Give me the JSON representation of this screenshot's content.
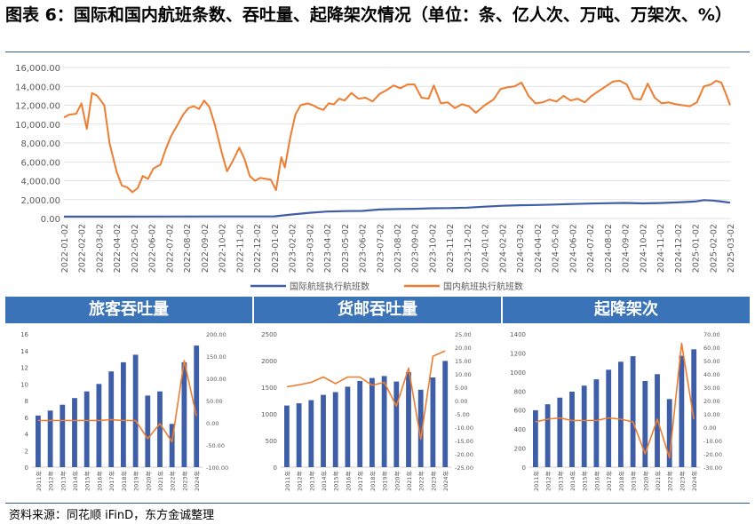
{
  "figure_title": "图表 6：国际和国内航班条数、吞吐量、起降架次情况（单位：条、亿人次、万吨、万架次、%）",
  "source_note": "资料来源：同花顺 iFinD，东方金诚整理",
  "colors": {
    "blue": "#3e5ea8",
    "orange": "#ed7d31",
    "band": "#3a73b7",
    "grid": "#d9d9d9",
    "axis_text": "#595959"
  },
  "chart_data": [
    {
      "type": "line",
      "title": "",
      "ylim": [
        0,
        16000
      ],
      "y_ticks": [
        "0.00",
        "2,000.00",
        "4,000.00",
        "6,000.00",
        "8,000.00",
        "10,000.00",
        "12,000.00",
        "14,000.00",
        "16,000.00"
      ],
      "x_ticks": [
        "2022-01-02",
        "2022-02-02",
        "2022-03-02",
        "2022-04-02",
        "2022-05-02",
        "2022-06-02",
        "2022-07-02",
        "2022-08-02",
        "2022-09-02",
        "2022-10-02",
        "2022-11-02",
        "2022-12-02",
        "2023-01-02",
        "2023-02-02",
        "2023-03-02",
        "2023-04-02",
        "2023-05-02",
        "2023-06-02",
        "2023-07-02",
        "2023-08-02",
        "2023-09-02",
        "2023-10-02",
        "2023-11-02",
        "2023-12-02",
        "2024-01-02",
        "2024-02-02",
        "2024-03-02",
        "2024-04-02",
        "2024-05-02",
        "2024-06-02",
        "2024-07-02",
        "2024-08-02",
        "2024-09-02",
        "2024-10-02",
        "2024-11-02",
        "2024-12-02",
        "2025-01-02",
        "2025-02-02",
        "2025-03-02"
      ],
      "legend_position": "bottom",
      "series": [
        {
          "name": "国际航班执行航班数",
          "color": "#3e5ea8",
          "points": [
            [
              0,
              200
            ],
            [
              6,
              210
            ],
            [
              12,
              230
            ],
            [
              13,
              420
            ],
            [
              14,
              600
            ],
            [
              15,
              730
            ],
            [
              16,
              780
            ],
            [
              17,
              800
            ],
            [
              18,
              950
            ],
            [
              19,
              1000
            ],
            [
              20,
              1030
            ],
            [
              21,
              1080
            ],
            [
              22,
              1100
            ],
            [
              23,
              1150
            ],
            [
              24,
              1250
            ],
            [
              25,
              1350
            ],
            [
              26,
              1400
            ],
            [
              27,
              1430
            ],
            [
              28,
              1480
            ],
            [
              29,
              1530
            ],
            [
              30,
              1580
            ],
            [
              31,
              1620
            ],
            [
              32,
              1650
            ],
            [
              33,
              1600
            ],
            [
              34,
              1640
            ],
            [
              35,
              1700
            ],
            [
              36,
              1800
            ],
            [
              36.5,
              1950
            ],
            [
              37,
              1900
            ],
            [
              37.5,
              1800
            ],
            [
              38,
              1680
            ]
          ]
        },
        {
          "name": "国内航班执行航班数",
          "color": "#ed7d31",
          "points": [
            [
              0,
              10700
            ],
            [
              0.3,
              11000
            ],
            [
              0.7,
              11100
            ],
            [
              1,
              12200
            ],
            [
              1.3,
              9500
            ],
            [
              1.6,
              13300
            ],
            [
              1.9,
              13000
            ],
            [
              2.3,
              12000
            ],
            [
              2.6,
              8000
            ],
            [
              3,
              5000
            ],
            [
              3.3,
              3500
            ],
            [
              3.6,
              3300
            ],
            [
              3.9,
              2800
            ],
            [
              4.2,
              3200
            ],
            [
              4.5,
              4500
            ],
            [
              4.8,
              4200
            ],
            [
              5.1,
              5300
            ],
            [
              5.5,
              5700
            ],
            [
              5.8,
              7300
            ],
            [
              6.1,
              8700
            ],
            [
              6.5,
              10000
            ],
            [
              6.8,
              11000
            ],
            [
              7.1,
              11700
            ],
            [
              7.4,
              11900
            ],
            [
              7.7,
              11600
            ],
            [
              8,
              12500
            ],
            [
              8.3,
              11800
            ],
            [
              8.6,
              10000
            ],
            [
              9,
              7000
            ],
            [
              9.3,
              5000
            ],
            [
              9.6,
              6000
            ],
            [
              10,
              7500
            ],
            [
              10.3,
              6300
            ],
            [
              10.6,
              4500
            ],
            [
              10.9,
              4000
            ],
            [
              11.2,
              4300
            ],
            [
              11.5,
              4200
            ],
            [
              11.8,
              4100
            ],
            [
              12.1,
              3000
            ],
            [
              12.4,
              6500
            ],
            [
              12.6,
              5400
            ],
            [
              12.9,
              8500
            ],
            [
              13.2,
              11000
            ],
            [
              13.5,
              12000
            ],
            [
              13.9,
              12200
            ],
            [
              14.2,
              12000
            ],
            [
              14.5,
              11700
            ],
            [
              14.8,
              11500
            ],
            [
              15.1,
              12200
            ],
            [
              15.4,
              12100
            ],
            [
              15.7,
              12700
            ],
            [
              16,
              12500
            ],
            [
              16.4,
              13300
            ],
            [
              16.8,
              12700
            ],
            [
              17.2,
              12800
            ],
            [
              17.6,
              12400
            ],
            [
              18,
              13200
            ],
            [
              18.4,
              13600
            ],
            [
              18.8,
              14100
            ],
            [
              19.2,
              13800
            ],
            [
              19.6,
              14200
            ],
            [
              20,
              14200
            ],
            [
              20.4,
              12800
            ],
            [
              20.8,
              12700
            ],
            [
              21.1,
              14100
            ],
            [
              21.5,
              12200
            ],
            [
              21.9,
              12300
            ],
            [
              22.3,
              11700
            ],
            [
              22.7,
              12100
            ],
            [
              23.1,
              11900
            ],
            [
              23.5,
              11200
            ],
            [
              24,
              12000
            ],
            [
              24.5,
              12600
            ],
            [
              24.9,
              13700
            ],
            [
              25.3,
              13900
            ],
            [
              25.7,
              14000
            ],
            [
              26.1,
              14400
            ],
            [
              26.5,
              13000
            ],
            [
              26.9,
              12200
            ],
            [
              27.3,
              12300
            ],
            [
              27.7,
              12600
            ],
            [
              28.1,
              12400
            ],
            [
              28.5,
              13000
            ],
            [
              28.9,
              12500
            ],
            [
              29.3,
              12700
            ],
            [
              29.7,
              12300
            ],
            [
              30.1,
              13000
            ],
            [
              30.5,
              13500
            ],
            [
              30.9,
              14000
            ],
            [
              31.3,
              14500
            ],
            [
              31.7,
              14600
            ],
            [
              32.1,
              14200
            ],
            [
              32.5,
              12700
            ],
            [
              32.9,
              12600
            ],
            [
              33.3,
              14300
            ],
            [
              33.7,
              12800
            ],
            [
              34.1,
              12200
            ],
            [
              34.5,
              12300
            ],
            [
              34.9,
              12100
            ],
            [
              35.3,
              12000
            ],
            [
              35.7,
              11900
            ],
            [
              36.1,
              12300
            ],
            [
              36.5,
              14000
            ],
            [
              36.9,
              14200
            ],
            [
              37.2,
              14600
            ],
            [
              37.5,
              14400
            ],
            [
              37.8,
              13000
            ],
            [
              38,
              12000
            ]
          ]
        }
      ]
    },
    {
      "type": "bar",
      "title": "旅客吞吐量",
      "categories": [
        "2011年",
        "2012年",
        "2013年",
        "2014年",
        "2015年",
        "2016年",
        "2017年",
        "2018年",
        "2019年",
        "2020年",
        "2021年",
        "2022年",
        "2023年",
        "2024年"
      ],
      "ylim": [
        0,
        16
      ],
      "y_ticks": [
        "0",
        "2",
        "4",
        "6",
        "8",
        "10",
        "12",
        "14",
        "16"
      ],
      "y2lim": [
        -100,
        200
      ],
      "y2_ticks": [
        "-100.00",
        "-50.00",
        "0.00",
        "50.00",
        "100.00",
        "150.00",
        "200.00"
      ],
      "series": [
        {
          "name": "",
          "kind": "bar",
          "axis": "left",
          "color": "#3e5ea8",
          "values": [
            6.2,
            6.8,
            7.5,
            8.3,
            9.1,
            10.0,
            11.5,
            12.6,
            13.5,
            8.6,
            9.1,
            5.2,
            12.6,
            14.6
          ]
        },
        {
          "name": "",
          "kind": "line",
          "axis": "right",
          "color": "#ed7d31",
          "values": [
            5,
            5,
            5,
            5,
            5,
            5,
            7,
            5,
            5,
            -36,
            -2,
            -43,
            140,
            15
          ]
        }
      ]
    },
    {
      "type": "bar",
      "title": "货邮吞吐量",
      "categories": [
        "2011年",
        "2012年",
        "2013年",
        "2014年",
        "2015年",
        "2016年",
        "2017年",
        "2018年",
        "2019年",
        "2020年",
        "2021年",
        "2022年",
        "2023年",
        "2024年"
      ],
      "ylim": [
        0,
        2500
      ],
      "y_ticks": [
        "0",
        "500",
        "1000",
        "1500",
        "2000",
        "2500"
      ],
      "y2lim": [
        -30,
        25
      ],
      "y2_ticks": [
        "-25.00",
        "-20.00",
        "-15.00",
        "-10.00",
        "-5.00",
        "0.00",
        "5.00",
        "10.00",
        "15.00",
        "20.00",
        "25.00"
      ],
      "series": [
        {
          "name": "",
          "kind": "bar",
          "axis": "left",
          "color": "#3e5ea8",
          "values": [
            1157,
            1199,
            1258,
            1356,
            1409,
            1510,
            1618,
            1674,
            1710,
            1607,
            1783,
            1453,
            1683,
            1994
          ]
        },
        {
          "name": "",
          "kind": "line",
          "axis": "right",
          "color": "#ed7d31",
          "values": [
            3.2,
            4.0,
            5.0,
            7.2,
            4.5,
            7.2,
            7.2,
            3.8,
            5.0,
            -4.8,
            10.9,
            -18.5,
            15.8,
            18.0
          ]
        }
      ]
    },
    {
      "type": "bar",
      "title": "起降架次",
      "categories": [
        "2011年",
        "2012年",
        "2013年",
        "2014年",
        "2015年",
        "2016年",
        "2017年",
        "2018年",
        "2019年",
        "2020年",
        "2021年",
        "2022年",
        "2023年",
        "2024年"
      ],
      "ylim": [
        0,
        1400
      ],
      "y_ticks": [
        "0",
        "200",
        "400",
        "600",
        "800",
        "1000",
        "1200",
        "1400"
      ],
      "y2lim": [
        -30,
        70
      ],
      "y2_ticks": [
        "-30.00",
        "-20.00",
        "-10.00",
        "0.00",
        "10.00",
        "20.00",
        "30.00",
        "40.00",
        "50.00",
        "60.00",
        "70.00"
      ],
      "series": [
        {
          "name": "",
          "kind": "bar",
          "axis": "left",
          "color": "#3e5ea8",
          "values": [
            598,
            661,
            731,
            793,
            857,
            923,
            1024,
            1108,
            1166,
            905,
            977,
            716,
            1171,
            1239
          ]
        },
        {
          "name": "",
          "kind": "line",
          "axis": "right",
          "color": "#ed7d31",
          "values": [
            4,
            6,
            7,
            5,
            5,
            5,
            7,
            6,
            4,
            -20,
            6,
            -23,
            63,
            6
          ]
        }
      ]
    }
  ]
}
